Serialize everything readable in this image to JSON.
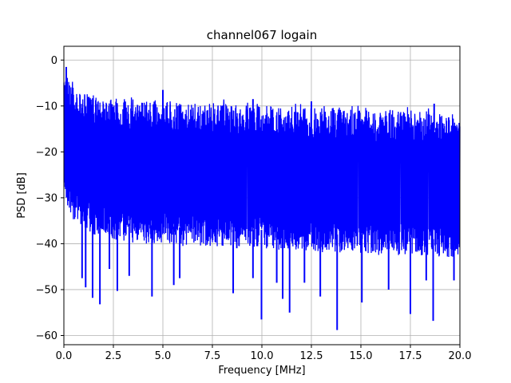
{
  "chart_data": {
    "type": "line",
    "title": "channel067 logain",
    "xlabel": "Frequency [MHz]",
    "ylabel": "PSD [dB]",
    "xlim": [
      0,
      20
    ],
    "ylim": [
      -62,
      3
    ],
    "grid": true,
    "line_color": "#0000ff",
    "x_ticks": [
      0.0,
      2.5,
      5.0,
      7.5,
      10.0,
      12.5,
      15.0,
      17.5,
      20.0
    ],
    "x_tick_labels": [
      "0.0",
      "2.5",
      "5.0",
      "7.5",
      "10.0",
      "12.5",
      "15.0",
      "17.5",
      "20.0"
    ],
    "y_ticks": [
      0,
      -10,
      -20,
      -30,
      -40,
      -50,
      -60
    ],
    "y_tick_labels": [
      "0",
      "−10",
      "−20",
      "−30",
      "−40",
      "−50",
      "−60"
    ],
    "series": [
      {
        "envelope_x": [
          0.0,
          0.1,
          0.2,
          0.3,
          0.5,
          1.0,
          1.5,
          2.0,
          2.5,
          3.0,
          4.0,
          5.0,
          6.0,
          7.0,
          8.0,
          9.0,
          10.0,
          11.0,
          12.0,
          13.0,
          14.0,
          15.0,
          16.0,
          17.0,
          18.0,
          19.0,
          20.0
        ],
        "upper": [
          -1.5,
          -2.0,
          -2.5,
          -4.0,
          -6.0,
          -7.0,
          -8.0,
          -8.5,
          -8.5,
          -9.0,
          -9.0,
          -9.0,
          -9.5,
          -9.5,
          -9.5,
          -10.0,
          -10.0,
          -10.0,
          -10.5,
          -10.5,
          -10.5,
          -11.0,
          -11.0,
          -11.0,
          -11.0,
          -11.5,
          -12.0
        ],
        "lower": [
          -28.0,
          -31.0,
          -33.0,
          -34.0,
          -35.0,
          -37.0,
          -38.0,
          -38.5,
          -39.0,
          -39.5,
          -40.0,
          -40.0,
          -40.5,
          -40.5,
          -41.0,
          -41.0,
          -41.0,
          -41.5,
          -41.5,
          -42.0,
          -42.0,
          -42.0,
          -42.5,
          -42.5,
          -43.0,
          -43.0,
          -43.0
        ],
        "dips": [
          {
            "x": 0.92,
            "y": -47.5
          },
          {
            "x": 1.1,
            "y": -49.5
          },
          {
            "x": 1.45,
            "y": -51.8
          },
          {
            "x": 1.82,
            "y": -53.2
          },
          {
            "x": 2.3,
            "y": -45.5
          },
          {
            "x": 2.7,
            "y": -50.3
          },
          {
            "x": 3.3,
            "y": -47.0
          },
          {
            "x": 4.45,
            "y": -51.5
          },
          {
            "x": 5.55,
            "y": -49.0
          },
          {
            "x": 5.85,
            "y": -47.5
          },
          {
            "x": 8.55,
            "y": -50.8
          },
          {
            "x": 9.55,
            "y": -47.5
          },
          {
            "x": 9.98,
            "y": -56.5
          },
          {
            "x": 10.75,
            "y": -48.5
          },
          {
            "x": 11.05,
            "y": -52.0
          },
          {
            "x": 11.4,
            "y": -55.0
          },
          {
            "x": 12.15,
            "y": -48.5
          },
          {
            "x": 12.95,
            "y": -51.5
          },
          {
            "x": 13.8,
            "y": -58.8
          },
          {
            "x": 15.05,
            "y": -52.8
          },
          {
            "x": 16.4,
            "y": -50.0
          },
          {
            "x": 17.5,
            "y": -55.3
          },
          {
            "x": 18.3,
            "y": -48.0
          },
          {
            "x": 18.65,
            "y": -56.8
          },
          {
            "x": 19.7,
            "y": -48.0
          }
        ],
        "peaks": [
          {
            "x": 0.12,
            "y": -1.5
          },
          {
            "x": 5.0,
            "y": -6.5
          },
          {
            "x": 9.55,
            "y": -8.5
          },
          {
            "x": 12.5,
            "y": -9.0
          },
          {
            "x": 18.7,
            "y": -9.5
          }
        ]
      }
    ]
  }
}
